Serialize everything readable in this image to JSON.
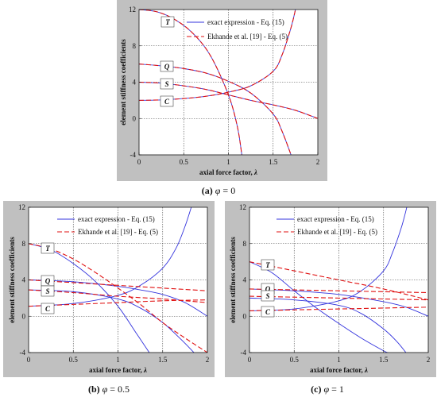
{
  "colors": {
    "exact": "#3333dd",
    "approx": "#e01010",
    "panel_bg": "#c0c0c0",
    "plot_bg": "#ffffff"
  },
  "series_names": [
    "exact expression - Eq. (15)",
    "Ekhande et al. [19] - Eq. (5)"
  ],
  "chart_data": [
    {
      "type": "line",
      "panel": "a",
      "caption_parts": [
        "(a)",
        "φ",
        " = 0"
      ],
      "xlabel_parts": [
        "axial force factor, ",
        "λ"
      ],
      "ylabel": "element stiffness coefficients",
      "xlim": [
        0,
        2
      ],
      "ylim": [
        -4,
        12
      ],
      "xticks": [
        "0",
        "0.5",
        "1",
        "1.5",
        "2"
      ],
      "yticks": [
        "-4",
        "0",
        "4",
        "8",
        "12"
      ],
      "grid": true,
      "legend": "top-right",
      "curve_labels": [
        "T",
        "Q",
        "S",
        "C"
      ],
      "series": [
        {
          "label": "T",
          "style": "exact",
          "x": [
            0,
            0.2,
            0.4,
            0.6,
            0.8,
            1.0,
            1.1,
            1.15
          ],
          "y": [
            12,
            11.75,
            10.9,
            9.4,
            6.9,
            2.6,
            -0.9,
            -4
          ]
        },
        {
          "label": "Q",
          "style": "exact",
          "x": [
            0,
            0.25,
            0.5,
            0.75,
            1.0,
            1.25,
            1.5,
            1.6,
            1.7
          ],
          "y": [
            6,
            5.8,
            5.5,
            5.0,
            4.1,
            2.8,
            0.5,
            -1.4,
            -4
          ]
        },
        {
          "label": "S",
          "style": "exact",
          "x": [
            0,
            0.25,
            0.5,
            0.75,
            1.0,
            1.25,
            1.5,
            1.75,
            2.0
          ],
          "y": [
            4,
            3.9,
            3.6,
            3.2,
            2.6,
            2.0,
            1.5,
            0.9,
            0
          ]
        },
        {
          "label": "C",
          "style": "exact",
          "x": [
            0,
            0.25,
            0.5,
            0.75,
            1.0,
            1.25,
            1.5,
            1.6,
            1.7,
            1.75
          ],
          "y": [
            2,
            2.05,
            2.2,
            2.45,
            2.9,
            3.6,
            5.2,
            7.0,
            10.0,
            12
          ]
        },
        {
          "label": "T",
          "style": "approx",
          "x": [
            0,
            0.2,
            0.4,
            0.6,
            0.8,
            1.0,
            1.1,
            1.15
          ],
          "y": [
            12,
            11.75,
            10.9,
            9.4,
            6.9,
            2.6,
            -0.9,
            -4
          ]
        },
        {
          "label": "Q",
          "style": "approx",
          "x": [
            0,
            0.25,
            0.5,
            0.75,
            1.0,
            1.25,
            1.5,
            1.6,
            1.7
          ],
          "y": [
            6,
            5.8,
            5.5,
            5.0,
            4.1,
            2.8,
            0.5,
            -1.4,
            -4
          ]
        },
        {
          "label": "S",
          "style": "approx",
          "x": [
            0,
            0.25,
            0.5,
            0.75,
            1.0,
            1.25,
            1.5,
            1.75,
            2.0
          ],
          "y": [
            4,
            3.9,
            3.6,
            3.2,
            2.6,
            2.0,
            1.5,
            0.9,
            0
          ]
        },
        {
          "label": "C",
          "style": "approx",
          "x": [
            0,
            0.25,
            0.5,
            0.75,
            1.0,
            1.25,
            1.5,
            1.6,
            1.7,
            1.75
          ],
          "y": [
            2,
            2.05,
            2.2,
            2.45,
            2.9,
            3.6,
            5.2,
            7.0,
            10.0,
            12
          ]
        }
      ]
    },
    {
      "type": "line",
      "panel": "b",
      "caption_parts": [
        "(b)",
        "φ",
        " = 0.5"
      ],
      "xlabel_parts": [
        "axial force factor, ",
        "λ"
      ],
      "ylabel": "element stiffness coefficients",
      "xlim": [
        0,
        2
      ],
      "ylim": [
        -4,
        12
      ],
      "xticks": [
        "0",
        "0.5",
        "1",
        "1.5",
        "2"
      ],
      "yticks": [
        "-4",
        "0",
        "4",
        "8",
        "12"
      ],
      "grid": true,
      "legend": "top-right",
      "curve_labels": [
        "T",
        "Q",
        "S",
        "C"
      ],
      "series": [
        {
          "label": "T",
          "style": "exact",
          "x": [
            0,
            0.25,
            0.5,
            0.75,
            1.0,
            1.2,
            1.35
          ],
          "y": [
            8,
            7.3,
            5.8,
            3.8,
            1.1,
            -1.8,
            -4
          ]
        },
        {
          "label": "Q",
          "style": "exact",
          "x": [
            0,
            0.5,
            1.0,
            1.25,
            1.5,
            1.75,
            2.0
          ],
          "y": [
            4,
            3.8,
            3.3,
            2.9,
            2.4,
            1.5,
            0
          ]
        },
        {
          "label": "S",
          "style": "exact",
          "x": [
            0,
            0.5,
            1.0,
            1.25,
            1.5,
            1.7,
            1.85
          ],
          "y": [
            2.9,
            2.7,
            1.9,
            0.9,
            -0.7,
            -2.5,
            -4
          ]
        },
        {
          "label": "C",
          "style": "exact",
          "x": [
            0,
            0.5,
            1.0,
            1.25,
            1.5,
            1.65,
            1.75,
            1.82
          ],
          "y": [
            1.1,
            1.4,
            2.3,
            3.4,
            5.3,
            7.5,
            9.9,
            12
          ]
        },
        {
          "label": "T",
          "style": "approx",
          "x": [
            0,
            0.25,
            0.5,
            0.75,
            1.0,
            1.25,
            1.5,
            1.75,
            2.0
          ],
          "y": [
            8,
            7.4,
            6.3,
            4.8,
            3.1,
            1.3,
            -0.7,
            -2.4,
            -4
          ]
        },
        {
          "label": "Q",
          "style": "approx",
          "x": [
            0,
            0.5,
            1.0,
            1.5,
            2.0
          ],
          "y": [
            4,
            3.7,
            3.4,
            3.1,
            2.8
          ]
        },
        {
          "label": "S",
          "style": "approx",
          "x": [
            0,
            0.5,
            1.0,
            1.5,
            2.0
          ],
          "y": [
            2.9,
            2.6,
            2.2,
            1.9,
            1.5
          ]
        },
        {
          "label": "C",
          "style": "approx",
          "x": [
            0,
            0.5,
            1.0,
            1.5,
            2.0
          ],
          "y": [
            1.1,
            1.3,
            1.5,
            1.7,
            1.8
          ]
        }
      ]
    },
    {
      "type": "line",
      "panel": "c",
      "caption_parts": [
        "(c)",
        "φ",
        " = 1"
      ],
      "xlabel_parts": [
        "axial force factor, ",
        "λ"
      ],
      "ylabel": "element stiffness coefficients",
      "xlim": [
        0,
        2
      ],
      "ylim": [
        -4,
        12
      ],
      "xticks": [
        "0",
        "0.5",
        "1",
        "1.5",
        "2"
      ],
      "yticks": [
        "-4",
        "0",
        "4",
        "8",
        "12"
      ],
      "grid": true,
      "legend": "top-right",
      "curve_labels": [
        "T",
        "Q",
        "S",
        "C"
      ],
      "series": [
        {
          "label": "T",
          "style": "exact",
          "x": [
            0,
            0.25,
            0.5,
            0.75,
            1.0,
            1.25,
            1.5,
            1.55
          ],
          "y": [
            6,
            4.8,
            2.8,
            0.9,
            -0.8,
            -2.4,
            -3.8,
            -4
          ]
        },
        {
          "label": "Q",
          "style": "exact",
          "x": [
            0,
            0.5,
            1.0,
            1.5,
            1.75,
            2.0
          ],
          "y": [
            3.0,
            2.8,
            2.4,
            1.6,
            1.0,
            0
          ]
        },
        {
          "label": "S",
          "style": "exact",
          "x": [
            0,
            0.5,
            1.0,
            1.25,
            1.5,
            1.65,
            1.75
          ],
          "y": [
            2.0,
            1.8,
            1.2,
            0.3,
            -1.4,
            -2.8,
            -4
          ]
        },
        {
          "label": "C",
          "style": "exact",
          "x": [
            0,
            0.5,
            1.0,
            1.25,
            1.5,
            1.6,
            1.7,
            1.76
          ],
          "y": [
            0.6,
            0.8,
            1.7,
            2.8,
            5.0,
            7.0,
            9.8,
            12
          ]
        },
        {
          "label": "T",
          "style": "approx",
          "x": [
            0,
            0.5,
            1.0,
            1.5,
            2.0
          ],
          "y": [
            6,
            5.0,
            4.0,
            3.0,
            1.8
          ]
        },
        {
          "label": "Q",
          "style": "approx",
          "x": [
            0,
            0.5,
            1.0,
            1.5,
            2.0
          ],
          "y": [
            3.0,
            2.9,
            2.8,
            2.7,
            2.6
          ]
        },
        {
          "label": "S",
          "style": "approx",
          "x": [
            0,
            0.5,
            1.0,
            1.5,
            2.0
          ],
          "y": [
            2.2,
            2.1,
            2.0,
            1.9,
            1.8
          ]
        },
        {
          "label": "C",
          "style": "approx",
          "x": [
            0,
            0.5,
            1.0,
            1.5,
            2.0
          ],
          "y": [
            0.6,
            0.7,
            0.8,
            0.9,
            1.0
          ]
        }
      ]
    }
  ]
}
